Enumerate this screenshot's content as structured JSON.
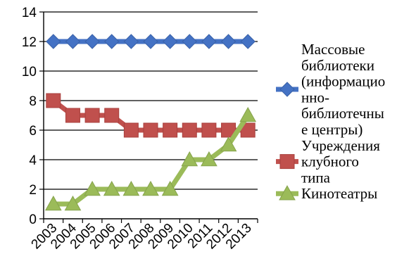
{
  "chart_data": {
    "type": "line",
    "title": "",
    "xlabel": "",
    "ylabel": "",
    "categories": [
      "2003",
      "2004",
      "2005",
      "2006",
      "2007",
      "2008",
      "2009",
      "2010",
      "2011",
      "2012",
      "2013"
    ],
    "ylim": [
      0,
      14
    ],
    "yticks": [
      0,
      2,
      4,
      6,
      8,
      10,
      12,
      14
    ],
    "grid": "horizontal",
    "legend_position": "right",
    "series": [
      {
        "name_lines": [
          "Массовые",
          "библиотеки",
          "(информацио",
          "нно-",
          "библиотечны",
          "е центры)"
        ],
        "marker": "diamond",
        "color": "#4472C4",
        "values": [
          12,
          12,
          12,
          12,
          12,
          12,
          12,
          12,
          12,
          12,
          12
        ]
      },
      {
        "name_lines": [
          "Учреждения",
          "клубного",
          "типа"
        ],
        "marker": "square",
        "color": "#C0504D",
        "values": [
          8,
          7,
          7,
          7,
          6,
          6,
          6,
          6,
          6,
          6,
          6
        ]
      },
      {
        "name_lines": [
          "Кинотеатры"
        ],
        "marker": "triangle",
        "color": "#9BBB59",
        "values": [
          1,
          1,
          2,
          2,
          2,
          2,
          2,
          4,
          4,
          5,
          7
        ]
      }
    ]
  }
}
